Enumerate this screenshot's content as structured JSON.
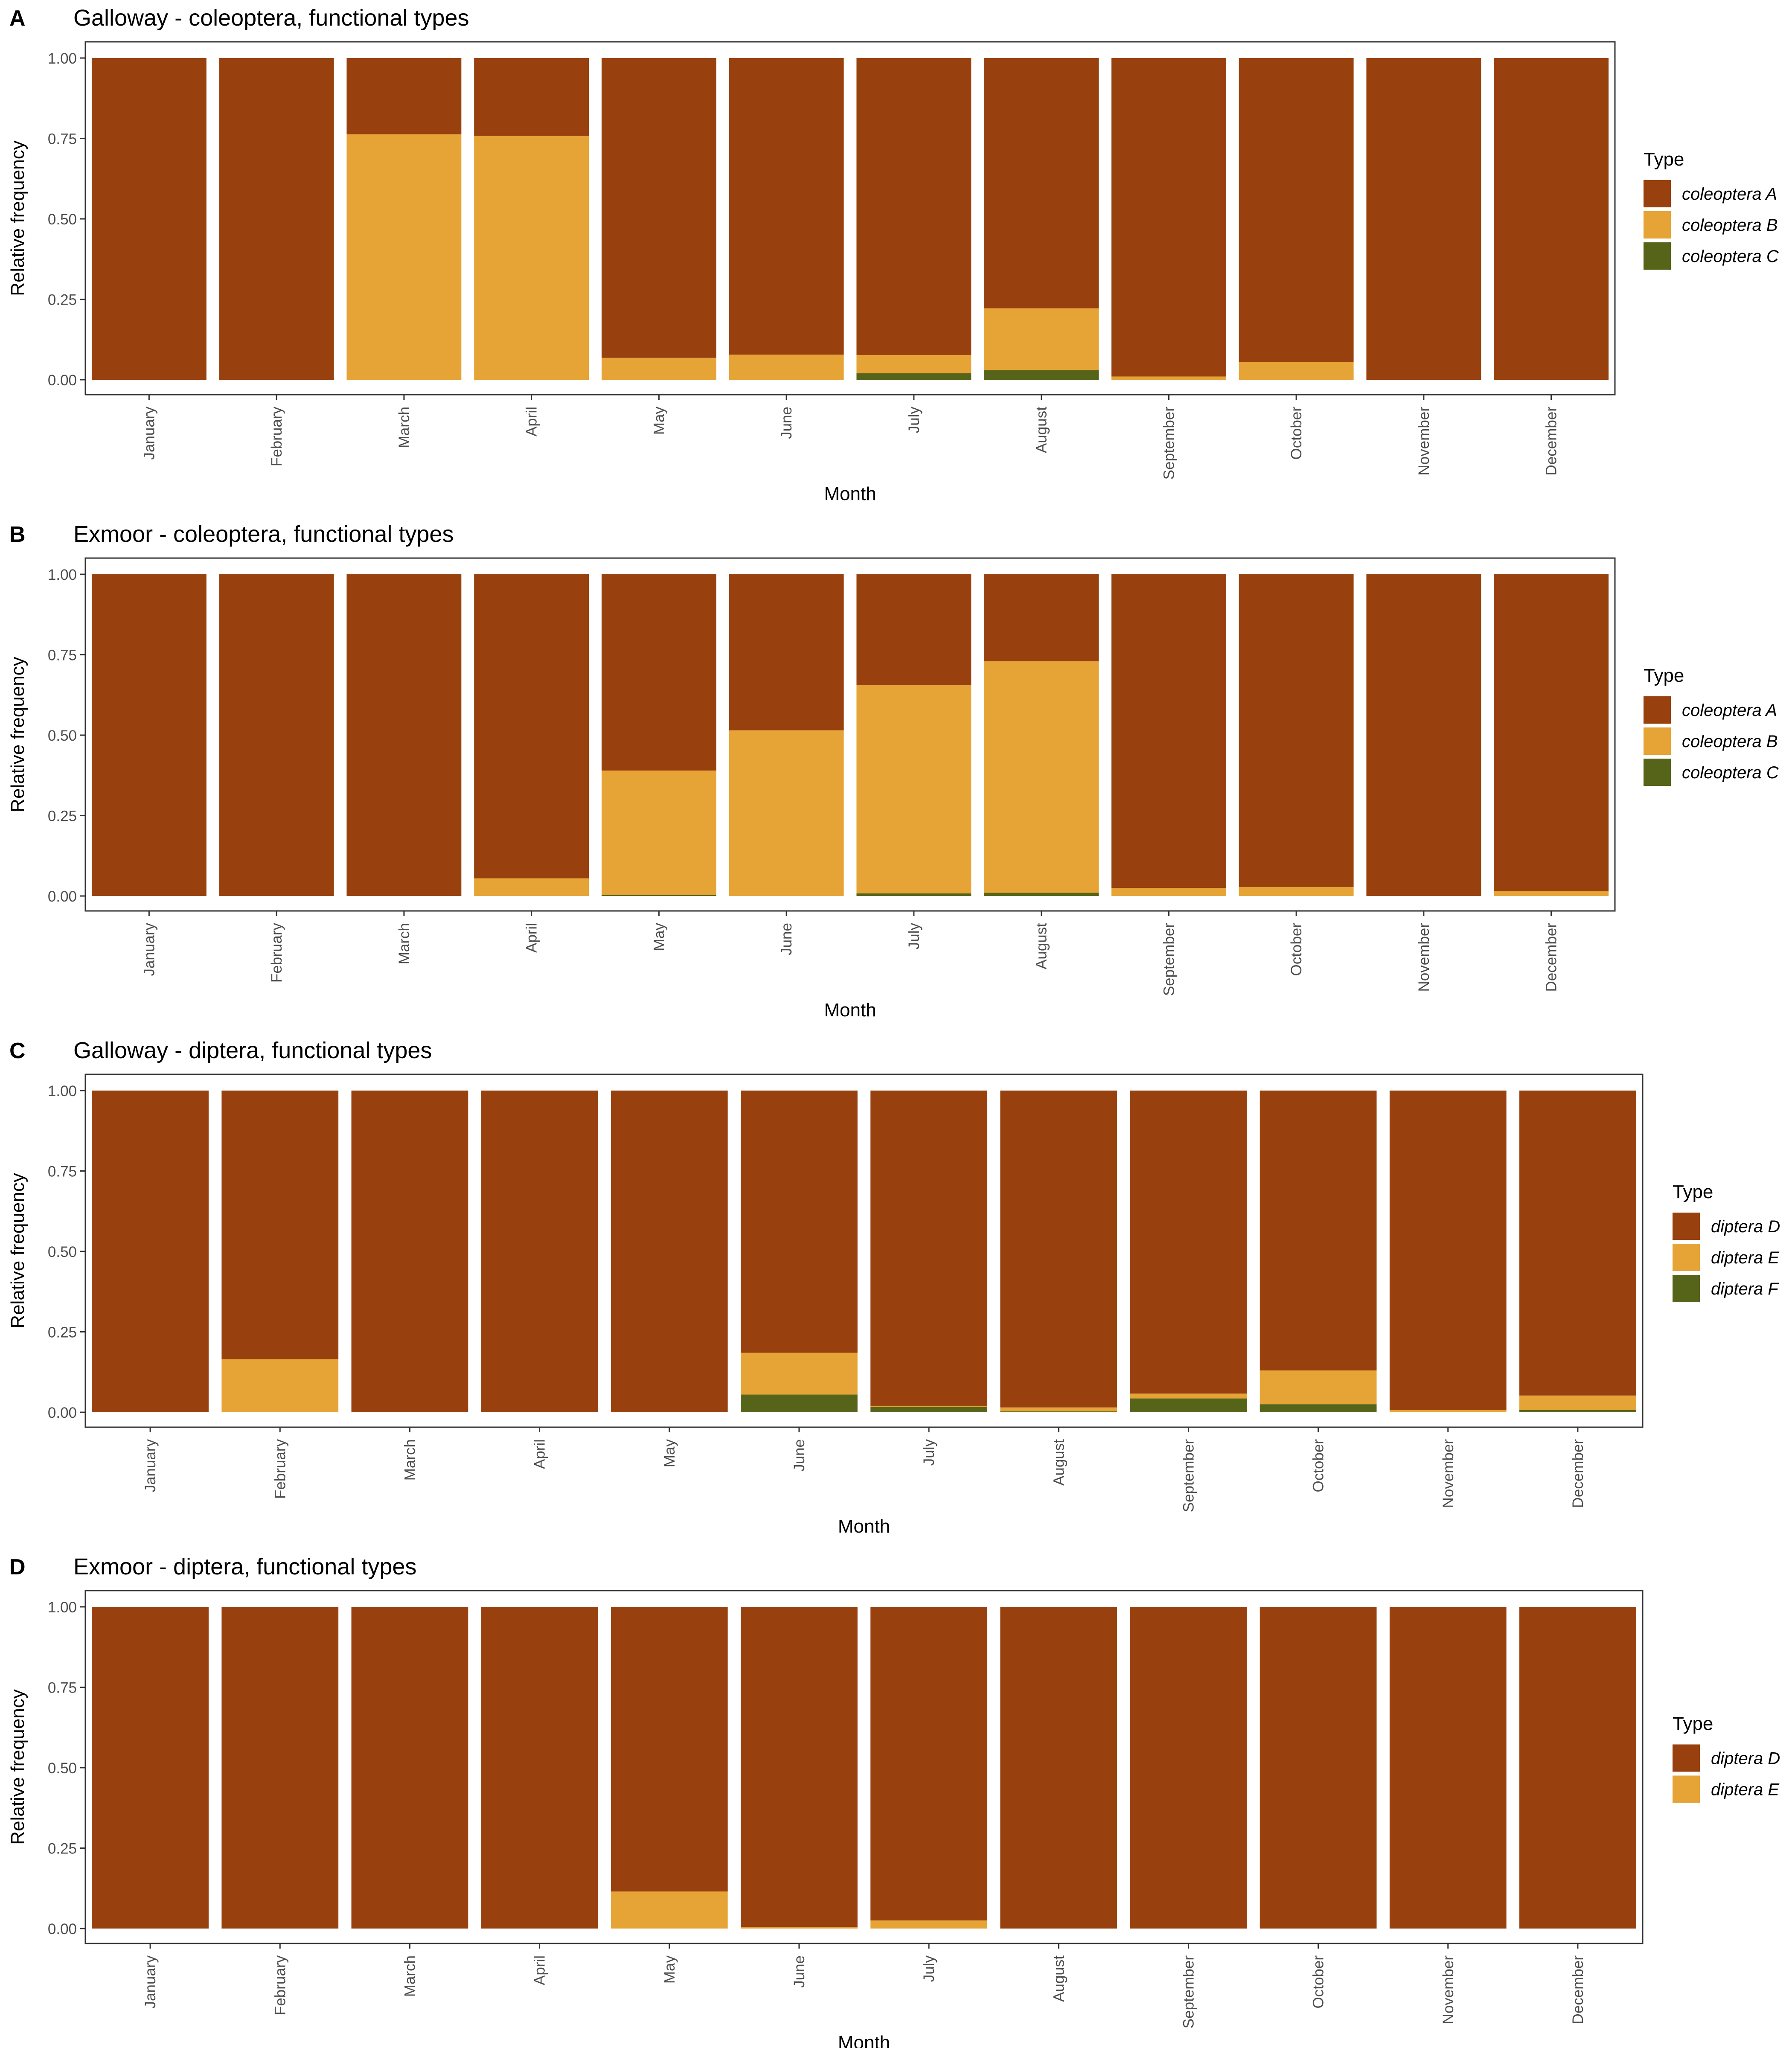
{
  "chart_data": [
    {
      "panel_letter": "A",
      "type": "bar",
      "stacked": true,
      "title": "Galloway - coleoptera, functional types",
      "xlabel": "Month",
      "ylabel": "Relative frequency",
      "ylim": [
        0,
        1
      ],
      "yticks": [
        "0.00",
        "0.25",
        "0.50",
        "0.75",
        "1.00"
      ],
      "categories": [
        "January",
        "February",
        "March",
        "April",
        "May",
        "June",
        "July",
        "August",
        "September",
        "October",
        "November",
        "December"
      ],
      "legend_title": "Type",
      "series": [
        {
          "name": "coleoptera A",
          "values": [
            1.0,
            1.0,
            0.237,
            0.242,
            0.932,
            0.922,
            0.923,
            0.778,
            0.99,
            0.945,
            1.0,
            1.0
          ]
        },
        {
          "name": "coleoptera B",
          "values": [
            0.0,
            0.0,
            0.763,
            0.758,
            0.068,
            0.078,
            0.057,
            0.192,
            0.01,
            0.055,
            0.0,
            0.0
          ]
        },
        {
          "name": "coleoptera C",
          "values": [
            0.0,
            0.0,
            0.0,
            0.0,
            0.0,
            0.0,
            0.02,
            0.03,
            0.0,
            0.0,
            0.0,
            0.0
          ]
        }
      ]
    },
    {
      "panel_letter": "B",
      "type": "bar",
      "stacked": true,
      "title": "Exmoor - coleoptera, functional types",
      "xlabel": "Month",
      "ylabel": "Relative frequency",
      "ylim": [
        0,
        1
      ],
      "yticks": [
        "0.00",
        "0.25",
        "0.50",
        "0.75",
        "1.00"
      ],
      "categories": [
        "January",
        "February",
        "March",
        "April",
        "May",
        "June",
        "July",
        "August",
        "September",
        "October",
        "November",
        "December"
      ],
      "legend_title": "Type",
      "series": [
        {
          "name": "coleoptera A",
          "values": [
            1.0,
            1.0,
            1.0,
            0.945,
            0.61,
            0.485,
            0.345,
            0.27,
            0.975,
            0.972,
            1.0,
            0.985
          ]
        },
        {
          "name": "coleoptera B",
          "values": [
            0.0,
            0.0,
            0.0,
            0.055,
            0.387,
            0.515,
            0.647,
            0.72,
            0.025,
            0.028,
            0.0,
            0.015
          ]
        },
        {
          "name": "coleoptera C",
          "values": [
            0.0,
            0.0,
            0.0,
            0.0,
            0.003,
            0.0,
            0.008,
            0.01,
            0.0,
            0.0,
            0.0,
            0.0
          ]
        }
      ]
    },
    {
      "panel_letter": "C",
      "type": "bar",
      "stacked": true,
      "title": "Galloway - diptera, functional types",
      "xlabel": "Month",
      "ylabel": "Relative frequency",
      "ylim": [
        0,
        1
      ],
      "yticks": [
        "0.00",
        "0.25",
        "0.50",
        "0.75",
        "1.00"
      ],
      "categories": [
        "January",
        "February",
        "March",
        "April",
        "May",
        "June",
        "July",
        "August",
        "September",
        "October",
        "November",
        "December"
      ],
      "legend_title": "Type",
      "series": [
        {
          "name": "diptera D",
          "values": [
            1.0,
            0.835,
            1.0,
            1.0,
            1.0,
            0.815,
            0.98,
            0.985,
            0.942,
            0.87,
            0.993,
            0.948
          ]
        },
        {
          "name": "diptera E",
          "values": [
            0.0,
            0.165,
            0.0,
            0.0,
            0.0,
            0.13,
            0.003,
            0.012,
            0.015,
            0.105,
            0.007,
            0.045
          ]
        },
        {
          "name": "diptera F",
          "values": [
            0.0,
            0.0,
            0.0,
            0.0,
            0.0,
            0.055,
            0.017,
            0.003,
            0.043,
            0.025,
            0.0,
            0.007
          ]
        }
      ]
    },
    {
      "panel_letter": "D",
      "type": "bar",
      "stacked": true,
      "title": "Exmoor - diptera, functional types",
      "xlabel": "Month",
      "ylabel": "Relative frequency",
      "ylim": [
        0,
        1
      ],
      "yticks": [
        "0.00",
        "0.25",
        "0.50",
        "0.75",
        "1.00"
      ],
      "categories": [
        "January",
        "February",
        "March",
        "April",
        "May",
        "June",
        "July",
        "August",
        "September",
        "October",
        "November",
        "December"
      ],
      "legend_title": "Type",
      "series": [
        {
          "name": "diptera D",
          "values": [
            1.0,
            1.0,
            1.0,
            1.0,
            0.885,
            0.995,
            0.975,
            1.0,
            1.0,
            1.0,
            1.0,
            1.0
          ]
        },
        {
          "name": "diptera E",
          "values": [
            0.0,
            0.0,
            0.0,
            0.0,
            0.115,
            0.005,
            0.025,
            0.0,
            0.0,
            0.0,
            0.0,
            0.0
          ]
        }
      ]
    }
  ],
  "colors": {
    "series_1": "#98410e",
    "series_2": "#e5a435",
    "series_3": "#566419",
    "panel_border": "#333333",
    "tick_text": "#4d4d4d",
    "text": "#000000"
  }
}
